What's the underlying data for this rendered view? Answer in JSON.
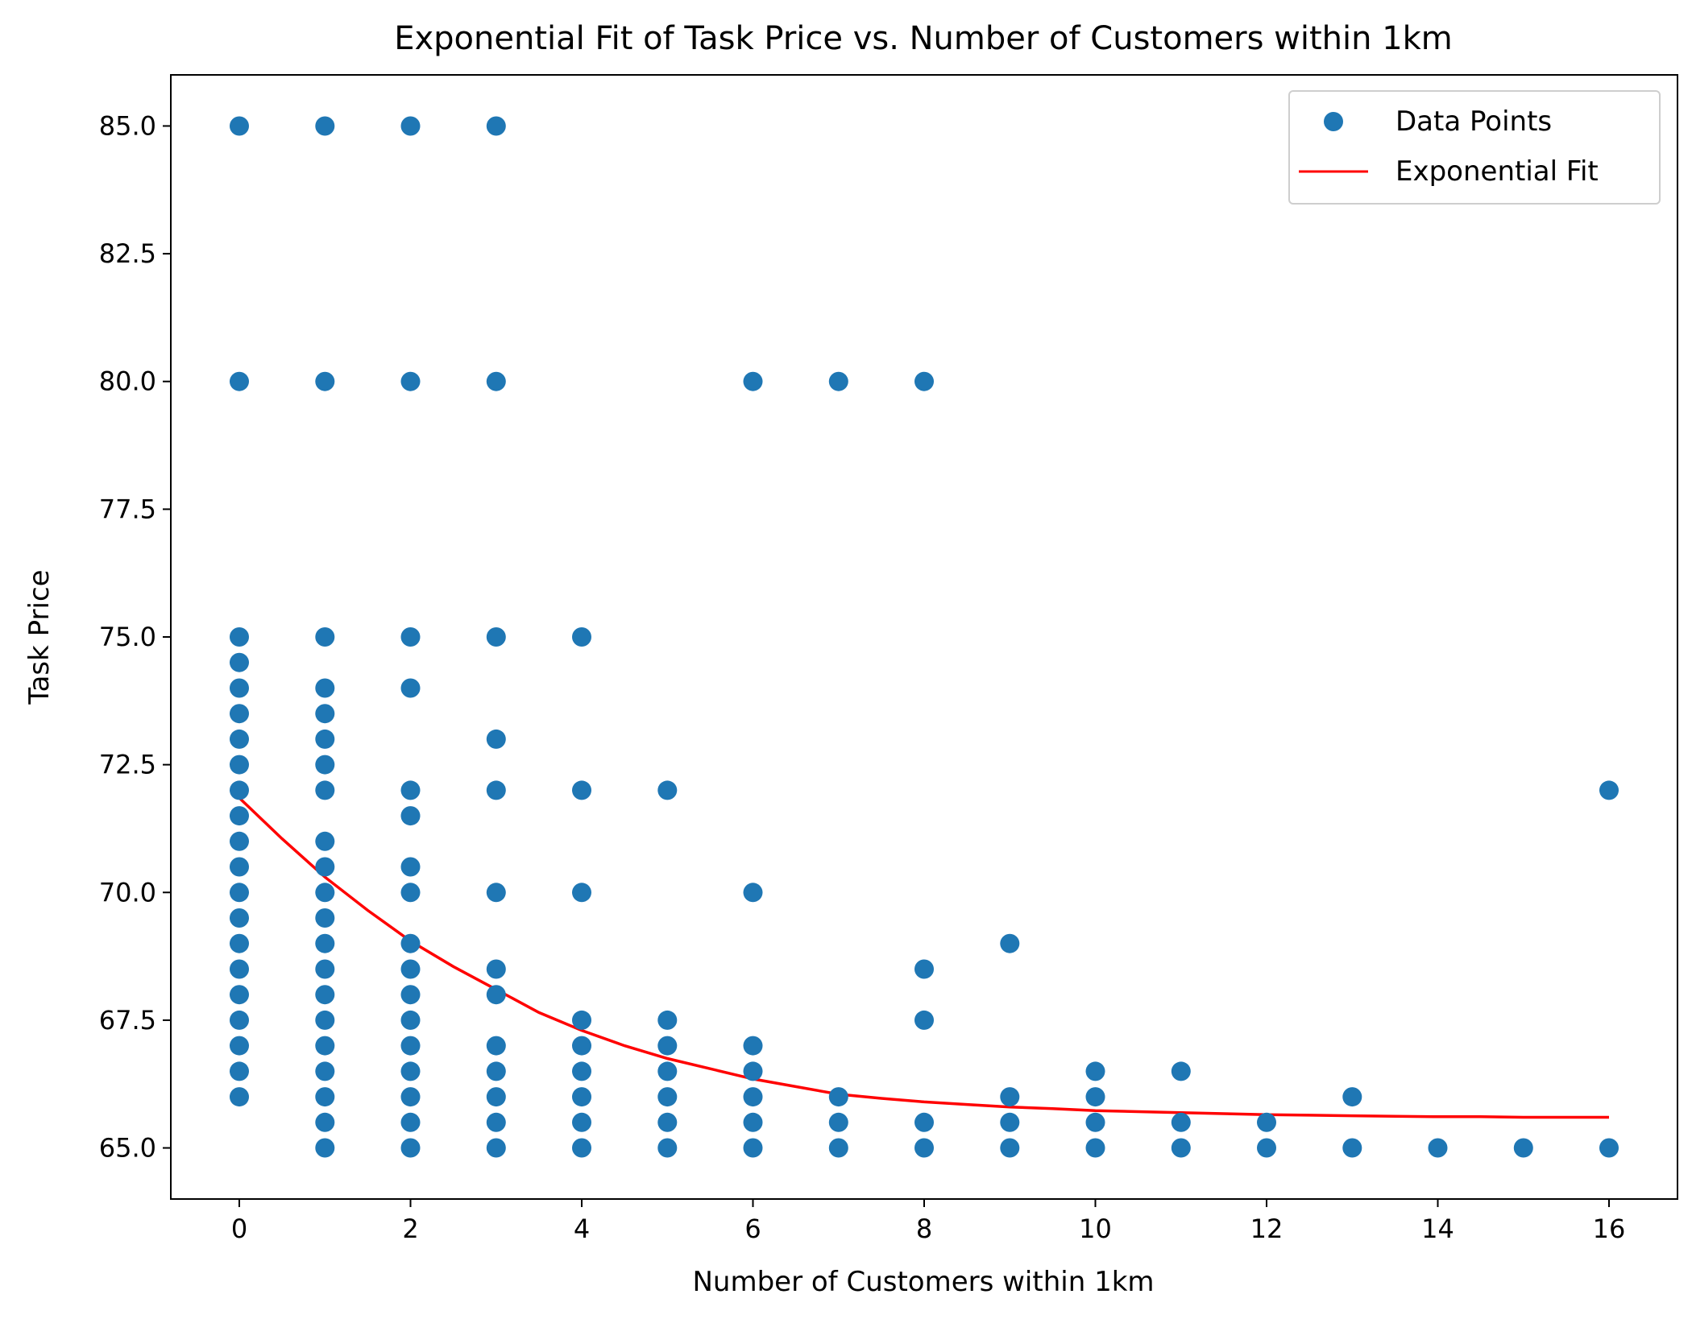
{
  "chart_data": {
    "type": "scatter",
    "title": "Exponential Fit of Task Price vs. Number of Customers within 1km",
    "xlabel": "Number of Customers within 1km",
    "ylabel": "Task Price",
    "xlim": [
      -0.8,
      16.8
    ],
    "ylim": [
      64.0,
      86.0
    ],
    "xticks": [
      0,
      2,
      4,
      6,
      8,
      10,
      12,
      14,
      16
    ],
    "yticks": [
      65.0,
      67.5,
      70.0,
      72.5,
      75.0,
      77.5,
      80.0,
      82.5,
      85.0
    ],
    "xtick_labels": [
      "0",
      "2",
      "4",
      "6",
      "8",
      "10",
      "12",
      "14",
      "16"
    ],
    "ytick_labels": [
      "65.0",
      "67.5",
      "70.0",
      "72.5",
      "75.0",
      "77.5",
      "80.0",
      "82.5",
      "85.0"
    ],
    "grid": false,
    "legend_position": "top-right",
    "series": [
      {
        "name": "Data Points",
        "kind": "scatter",
        "color": "#1f77b4",
        "points": [
          [
            0,
            85
          ],
          [
            0,
            80
          ],
          [
            0,
            75
          ],
          [
            0,
            74.5
          ],
          [
            0,
            74
          ],
          [
            0,
            73.5
          ],
          [
            0,
            73
          ],
          [
            0,
            72.5
          ],
          [
            0,
            72
          ],
          [
            0,
            71.5
          ],
          [
            0,
            71
          ],
          [
            0,
            70.5
          ],
          [
            0,
            70
          ],
          [
            0,
            69.5
          ],
          [
            0,
            69
          ],
          [
            0,
            68.5
          ],
          [
            0,
            68
          ],
          [
            0,
            67.5
          ],
          [
            0,
            67
          ],
          [
            0,
            66.5
          ],
          [
            0,
            66
          ],
          [
            1,
            85
          ],
          [
            1,
            80
          ],
          [
            1,
            75
          ],
          [
            1,
            74
          ],
          [
            1,
            73.5
          ],
          [
            1,
            73
          ],
          [
            1,
            72.5
          ],
          [
            1,
            72
          ],
          [
            1,
            71
          ],
          [
            1,
            70.5
          ],
          [
            1,
            70
          ],
          [
            1,
            69.5
          ],
          [
            1,
            69
          ],
          [
            1,
            68.5
          ],
          [
            1,
            68
          ],
          [
            1,
            67.5
          ],
          [
            1,
            67
          ],
          [
            1,
            66.5
          ],
          [
            1,
            66
          ],
          [
            1,
            65.5
          ],
          [
            1,
            65
          ],
          [
            2,
            85
          ],
          [
            2,
            80
          ],
          [
            2,
            75
          ],
          [
            2,
            74
          ],
          [
            2,
            72
          ],
          [
            2,
            71.5
          ],
          [
            2,
            70.5
          ],
          [
            2,
            70
          ],
          [
            2,
            69
          ],
          [
            2,
            68.5
          ],
          [
            2,
            68
          ],
          [
            2,
            67.5
          ],
          [
            2,
            67
          ],
          [
            2,
            66.5
          ],
          [
            2,
            66
          ],
          [
            2,
            65.5
          ],
          [
            2,
            65
          ],
          [
            3,
            85
          ],
          [
            3,
            80
          ],
          [
            3,
            75
          ],
          [
            3,
            73
          ],
          [
            3,
            72
          ],
          [
            3,
            70
          ],
          [
            3,
            68.5
          ],
          [
            3,
            68
          ],
          [
            3,
            67
          ],
          [
            3,
            66.5
          ],
          [
            3,
            66
          ],
          [
            3,
            65.5
          ],
          [
            3,
            65
          ],
          [
            4,
            75
          ],
          [
            4,
            72
          ],
          [
            4,
            70
          ],
          [
            4,
            67.5
          ],
          [
            4,
            67
          ],
          [
            4,
            66.5
          ],
          [
            4,
            66
          ],
          [
            4,
            65.5
          ],
          [
            4,
            65
          ],
          [
            5,
            72
          ],
          [
            5,
            67.5
          ],
          [
            5,
            67
          ],
          [
            5,
            66.5
          ],
          [
            5,
            66
          ],
          [
            5,
            65.5
          ],
          [
            5,
            65
          ],
          [
            6,
            80
          ],
          [
            6,
            70
          ],
          [
            6,
            67
          ],
          [
            6,
            66.5
          ],
          [
            6,
            66
          ],
          [
            6,
            65.5
          ],
          [
            6,
            65
          ],
          [
            7,
            80
          ],
          [
            7,
            66
          ],
          [
            7,
            65.5
          ],
          [
            7,
            65
          ],
          [
            8,
            80
          ],
          [
            8,
            68.5
          ],
          [
            8,
            67.5
          ],
          [
            8,
            65.5
          ],
          [
            8,
            65
          ],
          [
            9,
            69
          ],
          [
            9,
            66
          ],
          [
            9,
            65.5
          ],
          [
            9,
            65
          ],
          [
            10,
            66.5
          ],
          [
            10,
            66
          ],
          [
            10,
            65.5
          ],
          [
            10,
            65
          ],
          [
            11,
            66.5
          ],
          [
            11,
            65.5
          ],
          [
            11,
            65
          ],
          [
            12,
            65.5
          ],
          [
            12,
            65
          ],
          [
            13,
            66
          ],
          [
            13,
            65
          ],
          [
            14,
            65
          ],
          [
            15,
            65
          ],
          [
            16,
            72
          ],
          [
            16,
            65
          ]
        ]
      },
      {
        "name": "Exponential Fit",
        "kind": "line",
        "color": "#ff0000",
        "points": [
          [
            0,
            71.85
          ],
          [
            0.5,
            71.05
          ],
          [
            1,
            70.3
          ],
          [
            1.5,
            69.65
          ],
          [
            2,
            69.05
          ],
          [
            2.5,
            68.55
          ],
          [
            3,
            68.1
          ],
          [
            3.5,
            67.65
          ],
          [
            4,
            67.3
          ],
          [
            4.5,
            67.0
          ],
          [
            5,
            66.75
          ],
          [
            5.5,
            66.55
          ],
          [
            6,
            66.35
          ],
          [
            6.5,
            66.2
          ],
          [
            7,
            66.05
          ],
          [
            7.5,
            65.97
          ],
          [
            8,
            65.9
          ],
          [
            8.5,
            65.85
          ],
          [
            9,
            65.8
          ],
          [
            9.5,
            65.77
          ],
          [
            10,
            65.73
          ],
          [
            10.5,
            65.71
          ],
          [
            11,
            65.69
          ],
          [
            11.5,
            65.67
          ],
          [
            12,
            65.65
          ],
          [
            12.5,
            65.64
          ],
          [
            13,
            65.63
          ],
          [
            13.5,
            65.62
          ],
          [
            14,
            65.61
          ],
          [
            14.5,
            65.61
          ],
          [
            15,
            65.6
          ],
          [
            15.5,
            65.6
          ],
          [
            16,
            65.6
          ]
        ]
      }
    ]
  }
}
